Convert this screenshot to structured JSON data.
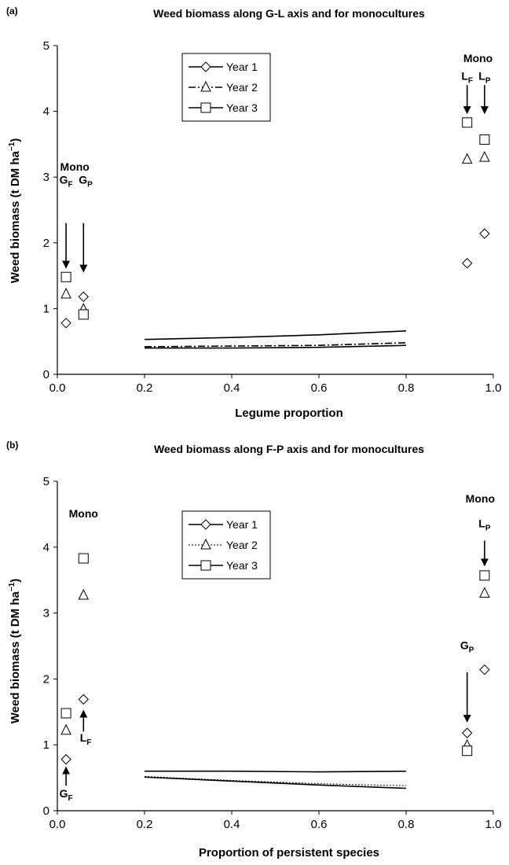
{
  "chart_data": [
    {
      "panel": "(a)",
      "type": "line",
      "title": "Weed biomass along G-L axis and for monocultures",
      "xlabel": "Legume proportion",
      "ylabel_main": "Weed biomass (t DM ha",
      "ylabel_sup": "−1",
      "ylabel_close": ")",
      "xlim": [
        0,
        1
      ],
      "ylim": [
        0,
        5
      ],
      "xticks": [
        0.0,
        0.2,
        0.4,
        0.6,
        0.8,
        1.0
      ],
      "xtick_labels": [
        "0.0",
        "0.2",
        "0.4",
        "0.6",
        "0.8",
        "1.0"
      ],
      "yticks": [
        0,
        1,
        2,
        3,
        4,
        5
      ],
      "ytick_labels": [
        "0",
        "1",
        "2",
        "3",
        "4",
        "5"
      ],
      "grid": false,
      "legend_position": "top-center",
      "series": [
        {
          "name": "Year 1",
          "dash": "solid",
          "marker": "diamond",
          "line": {
            "x": [
              0.2,
              0.4,
              0.6,
              0.8
            ],
            "y": [
              0.53,
              0.56,
              0.6,
              0.66
            ]
          },
          "points": [
            {
              "x": 0.02,
              "y": 0.78
            },
            {
              "x": 0.06,
              "y": 1.18
            },
            {
              "x": 0.94,
              "y": 1.69
            },
            {
              "x": 0.98,
              "y": 2.14
            }
          ]
        },
        {
          "name": "Year 2",
          "dash": "dashdot",
          "marker": "triangle",
          "line": {
            "x": [
              0.2,
              0.4,
              0.6,
              0.8
            ],
            "y": [
              0.42,
              0.43,
              0.44,
              0.48
            ]
          },
          "points": [
            {
              "x": 0.02,
              "y": 1.22
            },
            {
              "x": 0.06,
              "y": 0.99
            },
            {
              "x": 0.94,
              "y": 3.27
            },
            {
              "x": 0.98,
              "y": 3.3
            }
          ]
        },
        {
          "name": "Year 3",
          "dash": "solid",
          "marker": "square",
          "line": {
            "x": [
              0.2,
              0.4,
              0.6,
              0.8
            ],
            "y": [
              0.4,
              0.4,
              0.41,
              0.44
            ]
          },
          "points": [
            {
              "x": 0.02,
              "y": 1.48
            },
            {
              "x": 0.06,
              "y": 0.91
            },
            {
              "x": 0.94,
              "y": 3.83
            },
            {
              "x": 0.98,
              "y": 3.57
            }
          ]
        }
      ],
      "annotations": [
        {
          "kind": "text",
          "text": "Mono",
          "x": 0.04,
          "y": 3.1
        },
        {
          "kind": "label",
          "base": "G",
          "sub": "F",
          "x": 0.02,
          "y": 2.9
        },
        {
          "kind": "label",
          "base": "G",
          "sub": "P",
          "x": 0.065,
          "y": 2.9
        },
        {
          "kind": "arrow",
          "x": 0.02,
          "y_from": 2.3,
          "y_to": 1.62
        },
        {
          "kind": "arrow",
          "x": 0.06,
          "y_from": 2.3,
          "y_to": 1.56
        },
        {
          "kind": "text",
          "text": "Mono",
          "x": 0.965,
          "y": 4.75
        },
        {
          "kind": "label",
          "base": "L",
          "sub": "F",
          "x": 0.94,
          "y": 4.48
        },
        {
          "kind": "label",
          "base": "L",
          "sub": "P",
          "x": 0.98,
          "y": 4.48
        },
        {
          "kind": "arrow",
          "x": 0.94,
          "y_from": 4.4,
          "y_to": 3.97
        },
        {
          "kind": "arrow",
          "x": 0.98,
          "y_from": 4.4,
          "y_to": 3.97
        }
      ]
    },
    {
      "panel": "(b)",
      "type": "line",
      "title": "Weed biomass along F-P axis and for monocultures",
      "xlabel": "Proportion of persistent species",
      "ylabel_main": "Weed biomass (t DM ha",
      "ylabel_sup": "−1",
      "ylabel_close": ")",
      "xlim": [
        0,
        1
      ],
      "ylim": [
        0,
        5
      ],
      "xticks": [
        0.0,
        0.2,
        0.4,
        0.6,
        0.8,
        1.0
      ],
      "xtick_labels": [
        "0.0",
        "0.2",
        "0.4",
        "0.6",
        "0.8",
        "1.0"
      ],
      "yticks": [
        0,
        1,
        2,
        3,
        4,
        5
      ],
      "ytick_labels": [
        "0",
        "1",
        "2",
        "3",
        "4",
        "5"
      ],
      "grid": false,
      "legend_position": "top-center",
      "series": [
        {
          "name": "Year 1",
          "dash": "solid",
          "marker": "diamond",
          "line": {
            "x": [
              0.2,
              0.4,
              0.6,
              0.8
            ],
            "y": [
              0.51,
              0.45,
              0.39,
              0.34
            ]
          },
          "points": [
            {
              "x": 0.02,
              "y": 0.78
            },
            {
              "x": 0.06,
              "y": 1.69
            },
            {
              "x": 0.94,
              "y": 1.18
            },
            {
              "x": 0.98,
              "y": 2.14
            }
          ]
        },
        {
          "name": "Year 2",
          "dash": "dotted",
          "marker": "triangle",
          "line": {
            "x": [
              0.2,
              0.4,
              0.6,
              0.8
            ],
            "y": [
              0.52,
              0.46,
              0.41,
              0.38
            ]
          },
          "points": [
            {
              "x": 0.02,
              "y": 1.22
            },
            {
              "x": 0.06,
              "y": 3.27
            },
            {
              "x": 0.94,
              "y": 0.99
            },
            {
              "x": 0.98,
              "y": 3.3
            }
          ]
        },
        {
          "name": "Year 3",
          "dash": "solid",
          "marker": "square",
          "line": {
            "x": [
              0.2,
              0.4,
              0.6,
              0.8
            ],
            "y": [
              0.6,
              0.6,
              0.59,
              0.6
            ]
          },
          "points": [
            {
              "x": 0.02,
              "y": 1.48
            },
            {
              "x": 0.06,
              "y": 3.83
            },
            {
              "x": 0.94,
              "y": 0.91
            },
            {
              "x": 0.98,
              "y": 3.57
            }
          ]
        }
      ],
      "annotations": [
        {
          "kind": "text",
          "text": "Mono",
          "x": 0.06,
          "y": 4.45
        },
        {
          "kind": "label",
          "base": "G",
          "sub": "F",
          "x": 0.02,
          "y": 0.2
        },
        {
          "kind": "arrow",
          "x": 0.02,
          "y_from": 0.38,
          "y_to": 0.66
        },
        {
          "kind": "label",
          "base": "L",
          "sub": "F",
          "x": 0.065,
          "y": 1.05
        },
        {
          "kind": "arrow",
          "x": 0.06,
          "y_from": 1.2,
          "y_to": 1.52
        },
        {
          "kind": "text",
          "text": "Mono",
          "x": 0.97,
          "y": 4.68
        },
        {
          "kind": "label",
          "base": "L",
          "sub": "P",
          "x": 0.98,
          "y": 4.3
        },
        {
          "kind": "arrow",
          "x": 0.98,
          "y_from": 4.1,
          "y_to": 3.72
        },
        {
          "kind": "label",
          "base": "G",
          "sub": "P",
          "x": 0.94,
          "y": 2.45
        },
        {
          "kind": "arrow",
          "x": 0.94,
          "y_from": 2.1,
          "y_to": 1.35
        }
      ]
    }
  ]
}
